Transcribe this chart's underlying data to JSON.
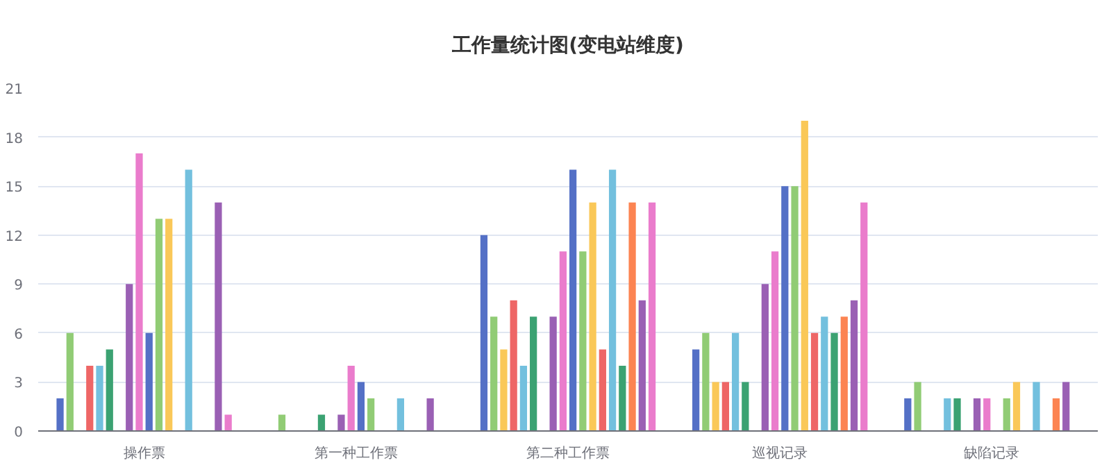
{
  "chart_data": {
    "type": "bar",
    "title": "工作量统计图(变电站维度)",
    "categories": [
      "操作票",
      "第一种工作票",
      "第二种工作票",
      "巡视记录",
      "缺陷记录"
    ],
    "ylim": [
      0,
      21
    ],
    "yticks": [
      0,
      3,
      6,
      9,
      12,
      15,
      18,
      21
    ],
    "grid": "y",
    "series": [
      {
        "color": "#5470c6",
        "values": [
          2,
          0,
          12,
          5,
          2
        ]
      },
      {
        "color": "#91cc75",
        "values": [
          6,
          1,
          7,
          6,
          3
        ]
      },
      {
        "color": "#fac858",
        "values": [
          0,
          0,
          5,
          3,
          0
        ]
      },
      {
        "color": "#ee6666",
        "values": [
          4,
          0,
          8,
          3,
          0
        ]
      },
      {
        "color": "#73c0de",
        "values": [
          4,
          0,
          4,
          6,
          2
        ]
      },
      {
        "color": "#3ba272",
        "values": [
          5,
          1,
          7,
          3,
          2
        ]
      },
      {
        "color": "#fc8452",
        "values": [
          0,
          0,
          0,
          0,
          0
        ]
      },
      {
        "color": "#9a60b4",
        "values": [
          9,
          1,
          7,
          9,
          2
        ]
      },
      {
        "color": "#ea7ccc",
        "values": [
          17,
          4,
          11,
          11,
          2
        ]
      },
      {
        "color": "#5470c6",
        "values": [
          6,
          3,
          16,
          15,
          0
        ]
      },
      {
        "color": "#91cc75",
        "values": [
          13,
          2,
          11,
          15,
          2
        ]
      },
      {
        "color": "#fac858",
        "values": [
          13,
          0,
          14,
          19,
          3
        ]
      },
      {
        "color": "#ee6666",
        "values": [
          0,
          0,
          5,
          6,
          0
        ]
      },
      {
        "color": "#73c0de",
        "values": [
          16,
          2,
          16,
          7,
          3
        ]
      },
      {
        "color": "#3ba272",
        "values": [
          0,
          0,
          4,
          6,
          0
        ]
      },
      {
        "color": "#fc8452",
        "values": [
          0,
          0,
          14,
          7,
          2
        ]
      },
      {
        "color": "#9a60b4",
        "values": [
          14,
          2,
          8,
          8,
          3
        ]
      },
      {
        "color": "#ea7ccc",
        "values": [
          1,
          0,
          14,
          14,
          0
        ]
      }
    ]
  }
}
